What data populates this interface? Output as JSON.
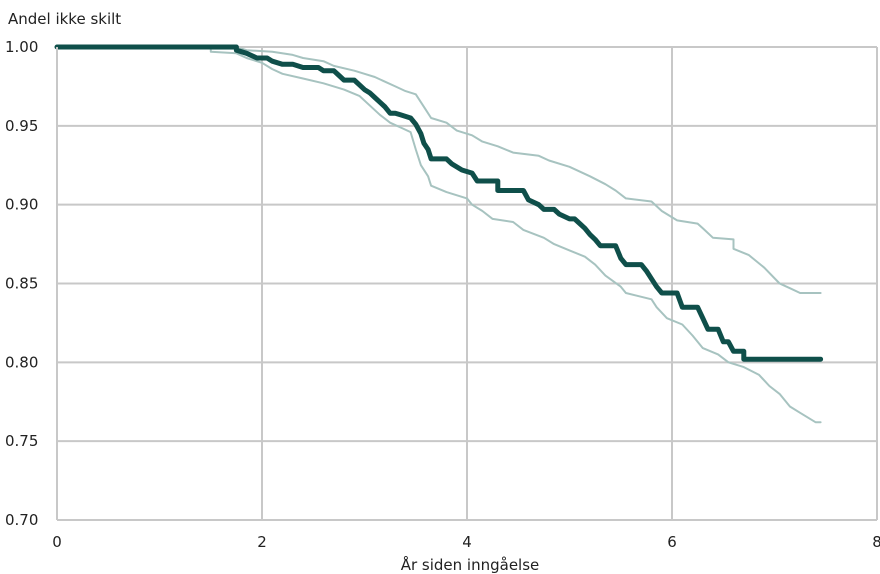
{
  "chart_data": {
    "type": "line",
    "title": "",
    "ylabel": "Andel ikke skilt",
    "xlabel": "År siden inngåelse",
    "xlim": [
      0,
      8
    ],
    "ylim": [
      0.7,
      1.0
    ],
    "xticks": [
      0,
      2,
      4,
      6,
      8
    ],
    "yticks": [
      0.7,
      0.75,
      0.8,
      0.85,
      0.9,
      0.95,
      1.0
    ],
    "ytick_labels": [
      "0.70",
      "0.75",
      "0.80",
      "0.85",
      "0.90",
      "0.95",
      "1.00"
    ],
    "xtick_labels": [
      "0",
      "2",
      "4",
      "6",
      "8"
    ],
    "grid": true,
    "series": [
      {
        "role": "estimate",
        "color": "#0f4f4a",
        "points": [
          [
            0,
            1.0
          ],
          [
            1.75,
            1.0
          ],
          [
            1.75,
            0.998
          ],
          [
            1.85,
            0.996
          ],
          [
            1.95,
            0.993
          ],
          [
            2.05,
            0.993
          ],
          [
            2.1,
            0.991
          ],
          [
            2.2,
            0.989
          ],
          [
            2.3,
            0.989
          ],
          [
            2.4,
            0.987
          ],
          [
            2.55,
            0.987
          ],
          [
            2.6,
            0.985
          ],
          [
            2.7,
            0.985
          ],
          [
            2.75,
            0.982
          ],
          [
            2.8,
            0.979
          ],
          [
            2.9,
            0.979
          ],
          [
            2.95,
            0.976
          ],
          [
            3.0,
            0.973
          ],
          [
            3.05,
            0.971
          ],
          [
            3.1,
            0.968
          ],
          [
            3.15,
            0.965
          ],
          [
            3.2,
            0.962
          ],
          [
            3.25,
            0.958
          ],
          [
            3.3,
            0.958
          ],
          [
            3.35,
            0.957
          ],
          [
            3.45,
            0.955
          ],
          [
            3.5,
            0.951
          ],
          [
            3.55,
            0.945
          ],
          [
            3.58,
            0.939
          ],
          [
            3.62,
            0.935
          ],
          [
            3.65,
            0.929
          ],
          [
            3.8,
            0.929
          ],
          [
            3.85,
            0.926
          ],
          [
            3.95,
            0.922
          ],
          [
            4.05,
            0.92
          ],
          [
            4.1,
            0.915
          ],
          [
            4.3,
            0.915
          ],
          [
            4.3,
            0.909
          ],
          [
            4.55,
            0.909
          ],
          [
            4.6,
            0.903
          ],
          [
            4.7,
            0.9
          ],
          [
            4.75,
            0.897
          ],
          [
            4.85,
            0.897
          ],
          [
            4.9,
            0.894
          ],
          [
            5.0,
            0.891
          ],
          [
            5.05,
            0.891
          ],
          [
            5.1,
            0.888
          ],
          [
            5.15,
            0.885
          ],
          [
            5.2,
            0.881
          ],
          [
            5.25,
            0.878
          ],
          [
            5.3,
            0.874
          ],
          [
            5.45,
            0.874
          ],
          [
            5.5,
            0.866
          ],
          [
            5.55,
            0.862
          ],
          [
            5.7,
            0.862
          ],
          [
            5.75,
            0.858
          ],
          [
            5.8,
            0.853
          ],
          [
            5.85,
            0.848
          ],
          [
            5.9,
            0.844
          ],
          [
            6.05,
            0.844
          ],
          [
            6.1,
            0.835
          ],
          [
            6.25,
            0.835
          ],
          [
            6.3,
            0.828
          ],
          [
            6.35,
            0.821
          ],
          [
            6.45,
            0.821
          ],
          [
            6.5,
            0.813
          ],
          [
            6.55,
            0.813
          ],
          [
            6.6,
            0.807
          ],
          [
            6.7,
            0.807
          ],
          [
            6.7,
            0.802
          ],
          [
            7.45,
            0.802
          ]
        ]
      },
      {
        "role": "upper-ci",
        "color": "#a7c3c0",
        "points": [
          [
            0,
            1.0
          ],
          [
            1.5,
            1.0
          ],
          [
            1.5,
            0.999
          ],
          [
            1.8,
            0.999
          ],
          [
            1.85,
            0.998
          ],
          [
            2.1,
            0.997
          ],
          [
            2.3,
            0.995
          ],
          [
            2.4,
            0.993
          ],
          [
            2.6,
            0.991
          ],
          [
            2.7,
            0.988
          ],
          [
            2.9,
            0.985
          ],
          [
            3.0,
            0.983
          ],
          [
            3.1,
            0.981
          ],
          [
            3.2,
            0.978
          ],
          [
            3.3,
            0.975
          ],
          [
            3.4,
            0.972
          ],
          [
            3.5,
            0.97
          ],
          [
            3.55,
            0.965
          ],
          [
            3.6,
            0.96
          ],
          [
            3.65,
            0.955
          ],
          [
            3.8,
            0.952
          ],
          [
            3.9,
            0.947
          ],
          [
            4.05,
            0.944
          ],
          [
            4.15,
            0.94
          ],
          [
            4.3,
            0.937
          ],
          [
            4.45,
            0.933
          ],
          [
            4.7,
            0.931
          ],
          [
            4.8,
            0.928
          ],
          [
            5.0,
            0.924
          ],
          [
            5.2,
            0.918
          ],
          [
            5.35,
            0.913
          ],
          [
            5.45,
            0.909
          ],
          [
            5.55,
            0.904
          ],
          [
            5.8,
            0.902
          ],
          [
            5.9,
            0.896
          ],
          [
            6.05,
            0.89
          ],
          [
            6.25,
            0.888
          ],
          [
            6.3,
            0.885
          ],
          [
            6.4,
            0.879
          ],
          [
            6.6,
            0.878
          ],
          [
            6.6,
            0.872
          ],
          [
            6.75,
            0.868
          ],
          [
            6.9,
            0.86
          ],
          [
            7.05,
            0.85
          ],
          [
            7.15,
            0.847
          ],
          [
            7.25,
            0.844
          ],
          [
            7.45,
            0.844
          ]
        ]
      },
      {
        "role": "lower-ci",
        "color": "#a7c3c0",
        "points": [
          [
            0,
            1.0
          ],
          [
            1.5,
            1.0
          ],
          [
            1.5,
            0.997
          ],
          [
            1.75,
            0.996
          ],
          [
            1.85,
            0.993
          ],
          [
            2.0,
            0.99
          ],
          [
            2.1,
            0.986
          ],
          [
            2.2,
            0.983
          ],
          [
            2.4,
            0.98
          ],
          [
            2.6,
            0.977
          ],
          [
            2.8,
            0.973
          ],
          [
            2.95,
            0.969
          ],
          [
            3.05,
            0.963
          ],
          [
            3.15,
            0.957
          ],
          [
            3.25,
            0.952
          ],
          [
            3.35,
            0.949
          ],
          [
            3.45,
            0.946
          ],
          [
            3.5,
            0.935
          ],
          [
            3.55,
            0.925
          ],
          [
            3.62,
            0.918
          ],
          [
            3.65,
            0.912
          ],
          [
            3.8,
            0.908
          ],
          [
            4.0,
            0.904
          ],
          [
            4.05,
            0.9
          ],
          [
            4.15,
            0.896
          ],
          [
            4.25,
            0.891
          ],
          [
            4.45,
            0.889
          ],
          [
            4.55,
            0.884
          ],
          [
            4.75,
            0.879
          ],
          [
            4.85,
            0.875
          ],
          [
            5.0,
            0.871
          ],
          [
            5.15,
            0.867
          ],
          [
            5.25,
            0.862
          ],
          [
            5.35,
            0.855
          ],
          [
            5.5,
            0.848
          ],
          [
            5.55,
            0.844
          ],
          [
            5.8,
            0.84
          ],
          [
            5.85,
            0.835
          ],
          [
            5.95,
            0.828
          ],
          [
            6.1,
            0.824
          ],
          [
            6.2,
            0.817
          ],
          [
            6.3,
            0.809
          ],
          [
            6.45,
            0.805
          ],
          [
            6.55,
            0.8
          ],
          [
            6.7,
            0.797
          ],
          [
            6.85,
            0.792
          ],
          [
            6.95,
            0.785
          ],
          [
            7.05,
            0.78
          ],
          [
            7.15,
            0.772
          ],
          [
            7.25,
            0.768
          ],
          [
            7.4,
            0.762
          ],
          [
            7.45,
            0.762
          ]
        ]
      }
    ]
  }
}
